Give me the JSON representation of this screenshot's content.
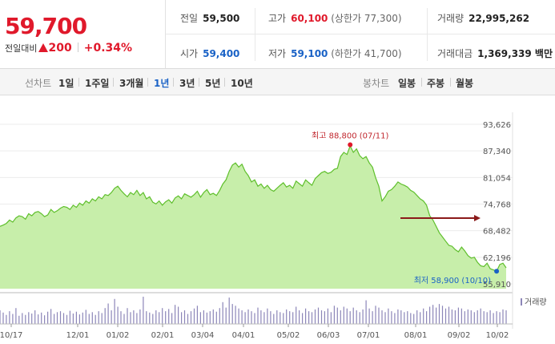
{
  "quote": {
    "price": "59,700",
    "diff_label": "전일대비",
    "diff_value": "200",
    "diff_pct": "+0.34%"
  },
  "stats": {
    "prev_close": {
      "label": "전일",
      "value": "59,500"
    },
    "high": {
      "label": "고가",
      "value": "60,100",
      "sub": "(상한가 77,300)"
    },
    "volume": {
      "label": "거래량",
      "value": "22,995,262"
    },
    "open": {
      "label": "시가",
      "value": "59,400"
    },
    "low": {
      "label": "저가",
      "value": "59,100",
      "sub": "(하한가 41,700)"
    },
    "amount": {
      "label": "거래대금",
      "value": "1,369,339 백만"
    }
  },
  "period_bar": {
    "line_label": "선차트",
    "line_tabs": [
      "1일",
      "1주일",
      "3개월",
      "1년",
      "3년",
      "5년",
      "10년"
    ],
    "active_tab": "1년",
    "candle_label": "봉차트",
    "candle_tabs": [
      "일봉",
      "주봉",
      "월봉"
    ]
  },
  "colors": {
    "up": "#e0192b",
    "down": "#1a62c6",
    "area_fill": "#c7eeaa",
    "line": "#5fbf2c",
    "arrow": "#8b1a1a"
  },
  "chart_data": {
    "type": "area",
    "y_ticks": [
      "93,626",
      "87,340",
      "81,054",
      "74,768",
      "68,482",
      "62,196",
      "55,910"
    ],
    "ylim": [
      55910,
      93626
    ],
    "x_ticks": [
      "10/17",
      "12/01",
      "01/02",
      "02/01",
      "03/04",
      "04/01",
      "05/02",
      "06/03",
      "07/01",
      "08/01",
      "09/02",
      "10/02"
    ],
    "max_annotation": "최고 88,800 (07/11)",
    "min_annotation": "최저 58,900 (10/10)",
    "volume_label": "거래량",
    "series": [
      {
        "values": [
          69500,
          69800,
          70200,
          71000,
          70500,
          71500,
          72000,
          71800,
          71200,
          72500,
          72000,
          72800,
          73000,
          72500,
          71800,
          72200,
          73500,
          72800,
          73200,
          73800,
          74200,
          74000,
          73500,
          74500,
          74000,
          75000,
          74500,
          75500,
          75000,
          76000,
          75500,
          76500,
          76000,
          77000,
          76800,
          77500,
          78500,
          79000,
          78000,
          77200,
          76500,
          77500,
          77000,
          78000,
          76800,
          77500,
          76000,
          76500,
          75200,
          74800,
          75500,
          74500,
          75300,
          75800,
          75000,
          76200,
          76700,
          76000,
          77200,
          76800,
          76400,
          77000,
          77800,
          76400,
          77500,
          78200,
          77000,
          77300,
          76800,
          78000,
          79500,
          80500,
          82500,
          84000,
          84500,
          83500,
          84200,
          82500,
          81500,
          80000,
          80500,
          79000,
          79500,
          78500,
          79200,
          78200,
          77800,
          78500,
          79200,
          79800,
          78800,
          79200,
          78500,
          80200,
          79600,
          79000,
          80500,
          79800,
          79200,
          80800,
          81500,
          82200,
          82500,
          82000,
          82300,
          83000,
          83200,
          86000,
          87000,
          86500,
          88500,
          87000,
          87800,
          86200,
          85500,
          86000,
          84500,
          83500,
          81000,
          79000,
          75500,
          76500,
          77800,
          78200,
          79000,
          80000,
          79500,
          79200,
          78800,
          78000,
          77600,
          76800,
          76000,
          75500,
          74500,
          72000,
          71000,
          69500,
          68000,
          67000,
          66000,
          65000,
          64800,
          64000,
          63500,
          64600,
          63700,
          62600,
          62000,
          62200,
          61000,
          60200,
          60000,
          60800,
          59500,
          59200,
          58900,
          60500,
          60800,
          59700
        ],
        "volume": [
          30,
          25,
          20,
          28,
          22,
          35,
          18,
          24,
          20,
          26,
          23,
          30,
          21,
          25,
          19,
          27,
          33,
          22,
          26,
          28,
          24,
          20,
          29,
          23,
          27,
          21,
          25,
          31,
          22,
          26,
          20,
          28,
          24,
          35,
          45,
          30,
          55,
          38,
          28,
          22,
          35,
          26,
          30,
          24,
          32,
          60,
          28,
          25,
          22,
          30,
          26,
          35,
          28,
          33,
          24,
          42,
          38,
          26,
          30,
          22,
          28,
          34,
          40,
          26,
          30,
          25,
          28,
          32,
          27,
          35,
          48,
          36,
          58,
          44,
          40,
          34,
          30,
          26,
          32,
          28,
          24,
          36,
          30,
          26,
          34,
          28,
          22,
          30,
          26,
          24,
          32,
          28,
          26,
          38,
          30,
          24,
          34,
          28,
          26,
          32,
          36,
          30,
          28,
          34,
          26,
          40,
          36,
          30,
          38,
          34,
          28,
          36,
          30,
          26,
          32,
          52,
          34,
          28,
          40,
          36,
          30,
          26,
          34,
          28,
          24,
          32,
          30,
          26,
          28,
          24,
          22,
          30,
          26,
          34,
          28,
          38,
          42,
          36,
          44,
          40,
          34,
          38,
          32,
          30,
          36,
          34,
          28,
          32,
          30,
          26,
          30,
          34,
          28,
          26,
          30,
          24,
          28,
          26,
          32,
          30
        ]
      }
    ]
  }
}
